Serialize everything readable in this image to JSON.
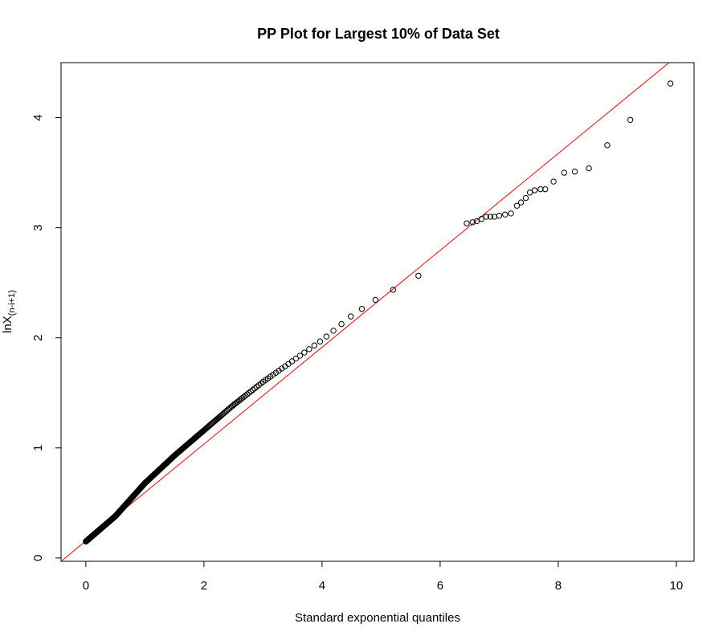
{
  "chart_data": {
    "type": "scatter",
    "title": "PP Plot for Largest 10% of Data Set",
    "xlabel": "Standard exponential quantiles",
    "ylabel": "lnX",
    "ylabel_sub": "(n-i+1)",
    "xlim": [
      -0.42,
      10.3
    ],
    "ylim": [
      -0.03,
      4.5
    ],
    "x_ticks": [
      0,
      2,
      4,
      6,
      8,
      10
    ],
    "y_ticks": [
      0,
      1,
      2,
      3,
      4
    ],
    "marker": "open-circle",
    "grid": false,
    "reference_line": {
      "intercept": 0.155,
      "slope": 0.44,
      "color": "#ff0000"
    },
    "points_outliers": [
      [
        6.45,
        3.04
      ],
      [
        6.55,
        3.05
      ],
      [
        6.62,
        3.06
      ],
      [
        6.7,
        3.08
      ],
      [
        6.78,
        3.1
      ],
      [
        6.85,
        3.1
      ],
      [
        6.92,
        3.1
      ],
      [
        7.0,
        3.11
      ],
      [
        7.1,
        3.12
      ],
      [
        7.2,
        3.13
      ],
      [
        7.3,
        3.2
      ],
      [
        7.37,
        3.23
      ],
      [
        7.45,
        3.27
      ],
      [
        7.52,
        3.32
      ],
      [
        7.6,
        3.34
      ],
      [
        7.7,
        3.35
      ],
      [
        7.78,
        3.35
      ],
      [
        7.92,
        3.42
      ],
      [
        8.1,
        3.5
      ],
      [
        8.28,
        3.51
      ],
      [
        8.52,
        3.54
      ],
      [
        8.83,
        3.75
      ],
      [
        9.22,
        3.98
      ],
      [
        9.9,
        4.31
      ]
    ],
    "curve_knots": [
      [
        0.0,
        0.15
      ],
      [
        0.5,
        0.38
      ],
      [
        1.0,
        0.68
      ],
      [
        1.5,
        0.93
      ],
      [
        2.0,
        1.16
      ],
      [
        2.5,
        1.39
      ],
      [
        3.0,
        1.6
      ],
      [
        3.5,
        1.79
      ],
      [
        4.0,
        1.98
      ],
      [
        4.5,
        2.2
      ],
      [
        5.0,
        2.38
      ],
      [
        5.5,
        2.52
      ],
      [
        5.8,
        2.62
      ],
      [
        6.0,
        2.8
      ],
      [
        6.2,
        2.95
      ],
      [
        6.4,
        3.02
      ]
    ],
    "n_dense_points": 520
  }
}
